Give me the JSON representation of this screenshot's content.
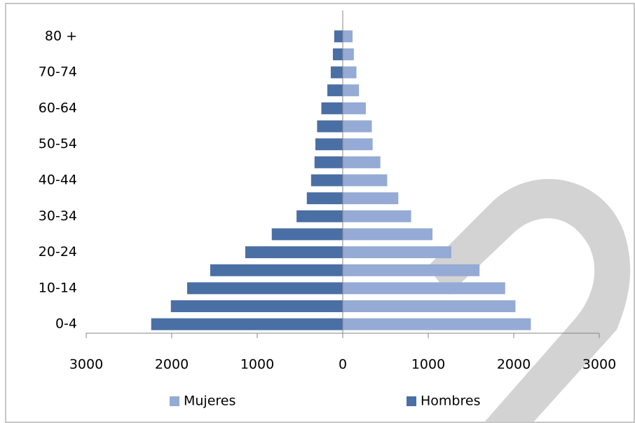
{
  "chart_data": {
    "type": "bar",
    "categories": [
      "0-4",
      null,
      "10-14",
      null,
      "20-24",
      null,
      "30-34",
      null,
      "40-44",
      null,
      "50-54",
      null,
      "60-64",
      null,
      "70-74",
      null,
      "80 +"
    ],
    "series": [
      {
        "name": "Mujeres",
        "color": "#95aad4",
        "values": [
          2200,
          2020,
          1900,
          1600,
          1270,
          1050,
          800,
          650,
          520,
          440,
          350,
          340,
          270,
          190,
          160,
          130,
          115
        ]
      },
      {
        "name": "Hombres",
        "color": "#4a6fa5",
        "values": [
          -2240,
          -2010,
          -1820,
          -1550,
          -1140,
          -830,
          -540,
          -420,
          -370,
          -330,
          -320,
          -300,
          -250,
          -180,
          -140,
          -115,
          -100
        ]
      }
    ],
    "xlim": [
      -3000,
      3000
    ],
    "xticks": [
      {
        "value": -3000,
        "label": "3000"
      },
      {
        "value": -2000,
        "label": "2000"
      },
      {
        "value": -1000,
        "label": "1000"
      },
      0,
      1000,
      2000,
      3000
    ],
    "legend": "bottom"
  }
}
